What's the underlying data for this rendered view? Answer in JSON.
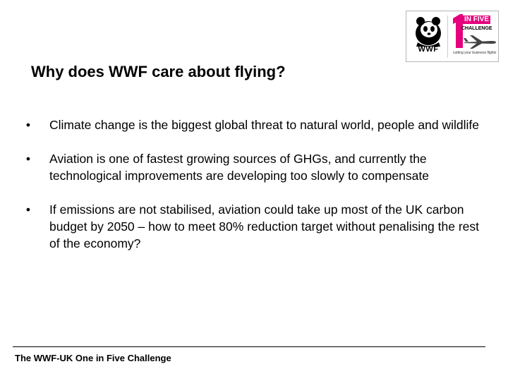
{
  "logo": {
    "wwf_label": "WWF",
    "badge_number": "1",
    "badge_title": "IN FIVE",
    "badge_subtitle": "CHALLENGE",
    "tagline": "cutting your business flights",
    "icon_wwf": "panda-icon",
    "icon_plane": "airplane-icon",
    "brand_color": "#e6007e"
  },
  "title": "Why does WWF care about flying?",
  "bullets": [
    {
      "marker": "•",
      "text": "Climate change is the biggest global threat to natural world, people and wildlife"
    },
    {
      "marker": "•",
      "text": "Aviation is one of fastest growing sources of GHGs, and currently the technological improvements are developing too slowly to compensate"
    },
    {
      "marker": "•",
      "text": "If emissions are not stabilised, aviation could take up most of the UK carbon budget by 2050 – how to meet 80% reduction target without penalising the rest of the economy?"
    }
  ],
  "footer": "The WWF-UK One in Five Challenge"
}
